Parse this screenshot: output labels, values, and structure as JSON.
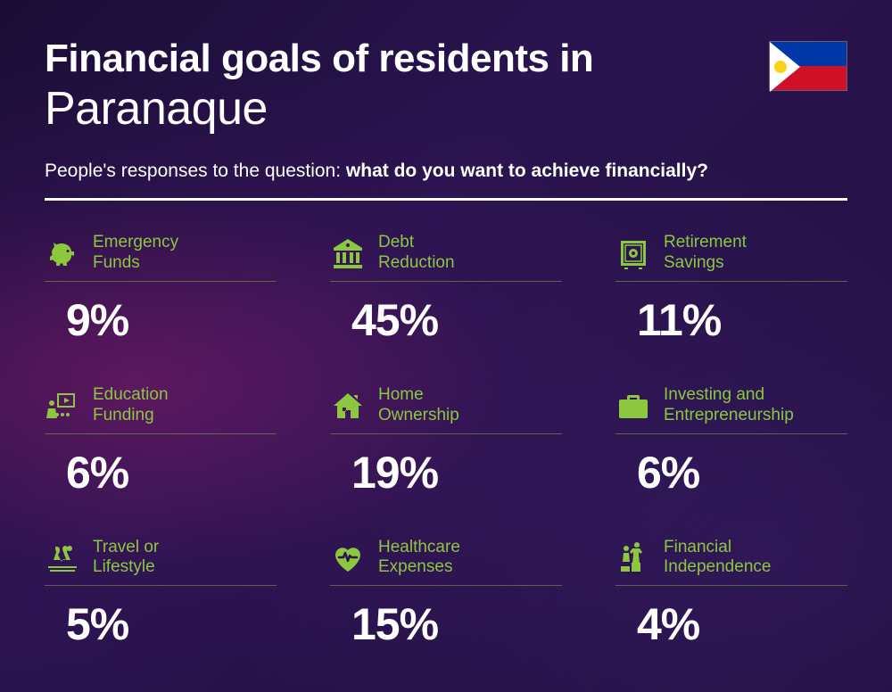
{
  "header": {
    "title_line1": "Financial goals of residents in",
    "title_line2": "Paranaque",
    "subtitle_prefix": "People's responses to the question: ",
    "subtitle_bold": "what do you want to achieve financially?"
  },
  "styling": {
    "accent_color": "#8dc63f",
    "text_color": "#ffffff",
    "title_bold_fontsize": 44,
    "title_light_fontsize": 52,
    "subtitle_fontsize": 21,
    "label_fontsize": 19,
    "value_fontsize": 50,
    "divider_color": "#ffffff",
    "item_underline_color": "rgba(141,200,62,0.45)",
    "background_gradient": "radial purple/magenta on dark indigo",
    "flag_colors": {
      "blue": "#0038a8",
      "red": "#ce1126",
      "white": "#ffffff",
      "sun": "#fcd116"
    }
  },
  "grid": {
    "columns": 3,
    "rows": 3,
    "column_gap": 60,
    "row_gap": 44
  },
  "items": [
    {
      "icon": "piggy-bank-icon",
      "label": "Emergency\nFunds",
      "value": "9%"
    },
    {
      "icon": "bank-icon",
      "label": "Debt\nReduction",
      "value": "45%"
    },
    {
      "icon": "safe-icon",
      "label": "Retirement\nSavings",
      "value": "11%"
    },
    {
      "icon": "education-icon",
      "label": "Education\nFunding",
      "value": "6%"
    },
    {
      "icon": "house-icon",
      "label": "Home\nOwnership",
      "value": "19%"
    },
    {
      "icon": "briefcase-icon",
      "label": "Investing and\nEntrepreneurship",
      "value": "6%"
    },
    {
      "icon": "travel-icon",
      "label": "Travel or\nLifestyle",
      "value": "5%"
    },
    {
      "icon": "healthcare-icon",
      "label": "Healthcare\nExpenses",
      "value": "15%"
    },
    {
      "icon": "independence-icon",
      "label": "Financial\nIndependence",
      "value": "4%"
    }
  ]
}
